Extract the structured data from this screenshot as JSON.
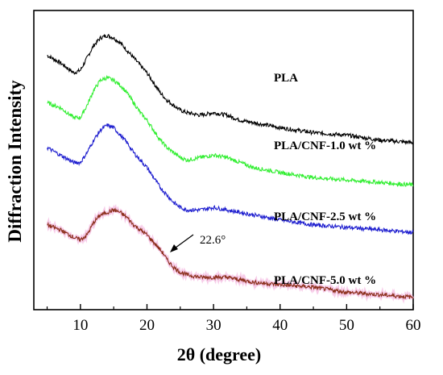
{
  "chart_data": {
    "type": "line",
    "xlabel": "2θ (degree)",
    "ylabel": "Diffraction Intensity",
    "xlim": [
      3,
      60
    ],
    "x_ticks": [
      10,
      20,
      30,
      40,
      50,
      60
    ],
    "x_tick_labels": [
      "10",
      "20",
      "30",
      "40",
      "50",
      "60"
    ],
    "grid": false,
    "offset_stacked": true,
    "series": [
      {
        "name": "PLA",
        "color": "#000000",
        "x": [
          5,
          7,
          9,
          10,
          11,
          12,
          13,
          14,
          15,
          16,
          17,
          18,
          19,
          20,
          21,
          22,
          23,
          24,
          25,
          26,
          28,
          30,
          32,
          34,
          36,
          40,
          45,
          50,
          55,
          60
        ],
        "y": [
          92,
          89,
          85,
          86,
          91,
          96,
          99,
          100,
          99,
          97,
          94,
          91,
          88,
          85,
          81,
          77,
          74,
          72,
          70,
          69,
          68,
          69,
          68,
          66,
          65,
          63,
          61,
          60,
          58,
          57
        ]
      },
      {
        "name": "PLA/CNF-1.0 wt %",
        "color": "#33ee33",
        "x": [
          5,
          7,
          9,
          10,
          11,
          12,
          13,
          14,
          15,
          16,
          17,
          18,
          19,
          20,
          21,
          22,
          23,
          24,
          25,
          26,
          28,
          30,
          32,
          34,
          36,
          40,
          45,
          50,
          55,
          60
        ],
        "y": [
          73,
          71,
          67,
          67,
          72,
          78,
          82,
          83,
          82,
          80,
          77,
          73,
          69,
          66,
          62,
          58,
          55,
          53,
          51,
          50,
          51,
          52,
          51,
          49,
          47,
          45,
          43,
          42,
          41,
          40
        ]
      },
      {
        "name": "PLA/CNF-2.5 wt %",
        "color": "#1f1fcf",
        "x": [
          5,
          7,
          9,
          10,
          11,
          12,
          13,
          14,
          15,
          16,
          17,
          18,
          19,
          20,
          21,
          22,
          23,
          24,
          25,
          26,
          28,
          30,
          32,
          34,
          36,
          40,
          45,
          50,
          55,
          60
        ],
        "y": [
          55,
          52,
          49,
          49,
          53,
          58,
          62,
          64,
          63,
          60,
          57,
          53,
          50,
          47,
          43,
          39,
          36,
          33,
          31,
          30,
          30,
          31,
          30,
          29,
          28,
          26,
          24,
          23,
          22,
          21
        ]
      },
      {
        "name": "PLA/CNF-5.0 wt %",
        "color": "#8b2e1a",
        "x": [
          5,
          7,
          9,
          10,
          11,
          12,
          13,
          14,
          15,
          16,
          17,
          18,
          19,
          20,
          21,
          22,
          22.6,
          23,
          24,
          25,
          26,
          28,
          30,
          32,
          34,
          36,
          40,
          45,
          50,
          55,
          60
        ],
        "y": [
          24,
          22,
          19,
          18,
          20,
          25,
          28,
          29,
          30,
          29,
          27,
          24,
          22,
          20,
          17,
          14,
          12,
          10,
          7,
          5,
          4,
          3,
          3,
          3,
          2,
          1,
          0,
          -1,
          -3,
          -4,
          -5
        ]
      }
    ],
    "annotations": [
      {
        "text": "22.6°",
        "x": 22.6
      }
    ]
  }
}
